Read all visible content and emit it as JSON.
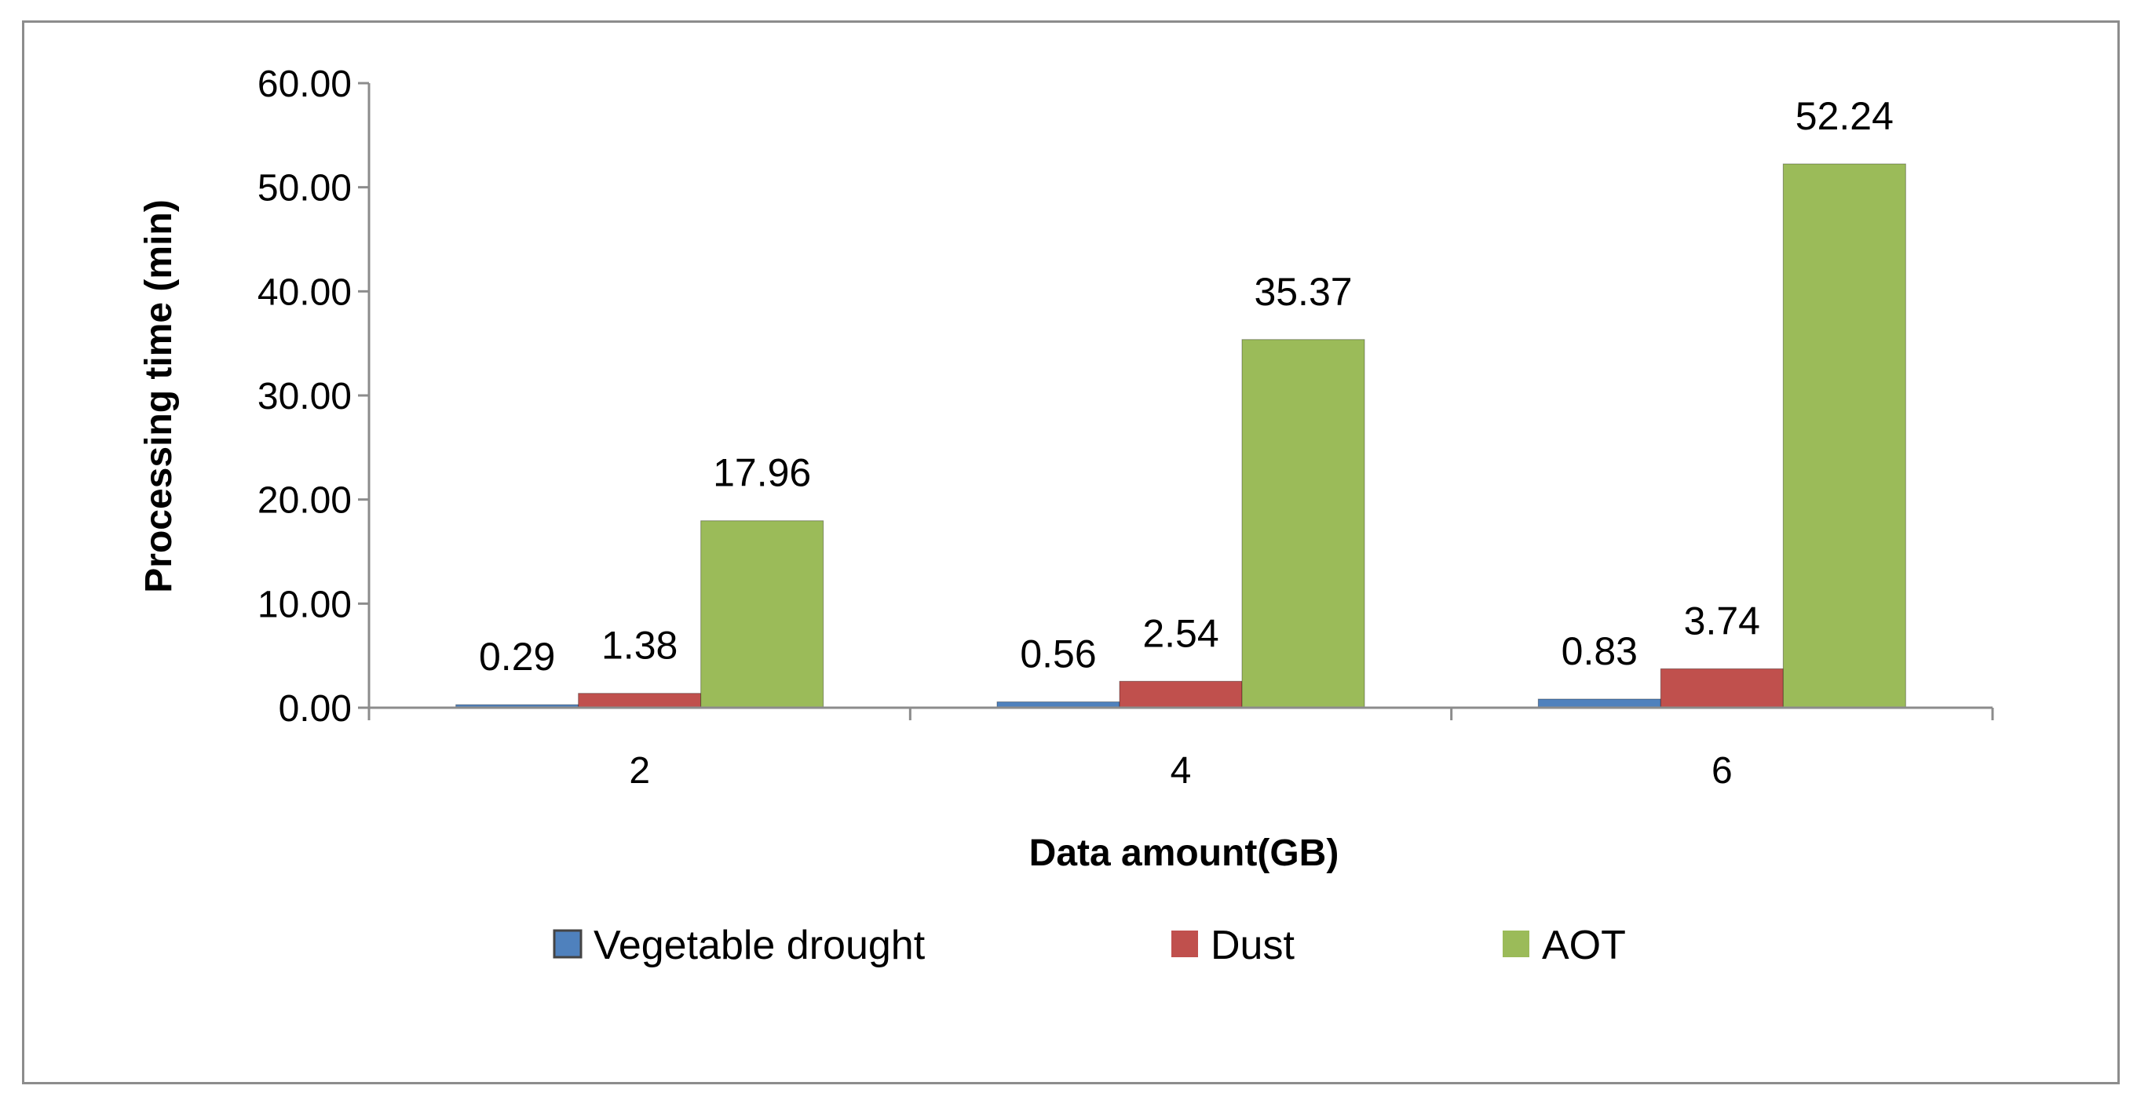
{
  "chart_data": {
    "type": "bar",
    "title": "",
    "xlabel": "Data amount(GB)",
    "ylabel": "Processing time (min)",
    "categories": [
      "2",
      "4",
      "6"
    ],
    "ylim": [
      0,
      60
    ],
    "yticks": [
      "0.00",
      "10.00",
      "20.00",
      "30.00",
      "40.00",
      "50.00",
      "60.00"
    ],
    "ytick_values": [
      0,
      10,
      20,
      30,
      40,
      50,
      60
    ],
    "grid": false,
    "legend_position": "bottom",
    "series": [
      {
        "name": "Vegetable drought",
        "color": "#4f81bd",
        "values": [
          0.29,
          0.56,
          0.83
        ],
        "labels": [
          "0.29",
          "0.56",
          "0.83"
        ]
      },
      {
        "name": "Dust",
        "color": "#c0504d",
        "values": [
          1.38,
          2.54,
          3.74
        ],
        "labels": [
          "1.38",
          "2.54",
          "3.74"
        ]
      },
      {
        "name": "AOT",
        "color": "#9bbb59",
        "values": [
          17.96,
          35.37,
          52.24
        ],
        "labels": [
          "17.96",
          "35.37",
          "52.24"
        ]
      }
    ]
  }
}
